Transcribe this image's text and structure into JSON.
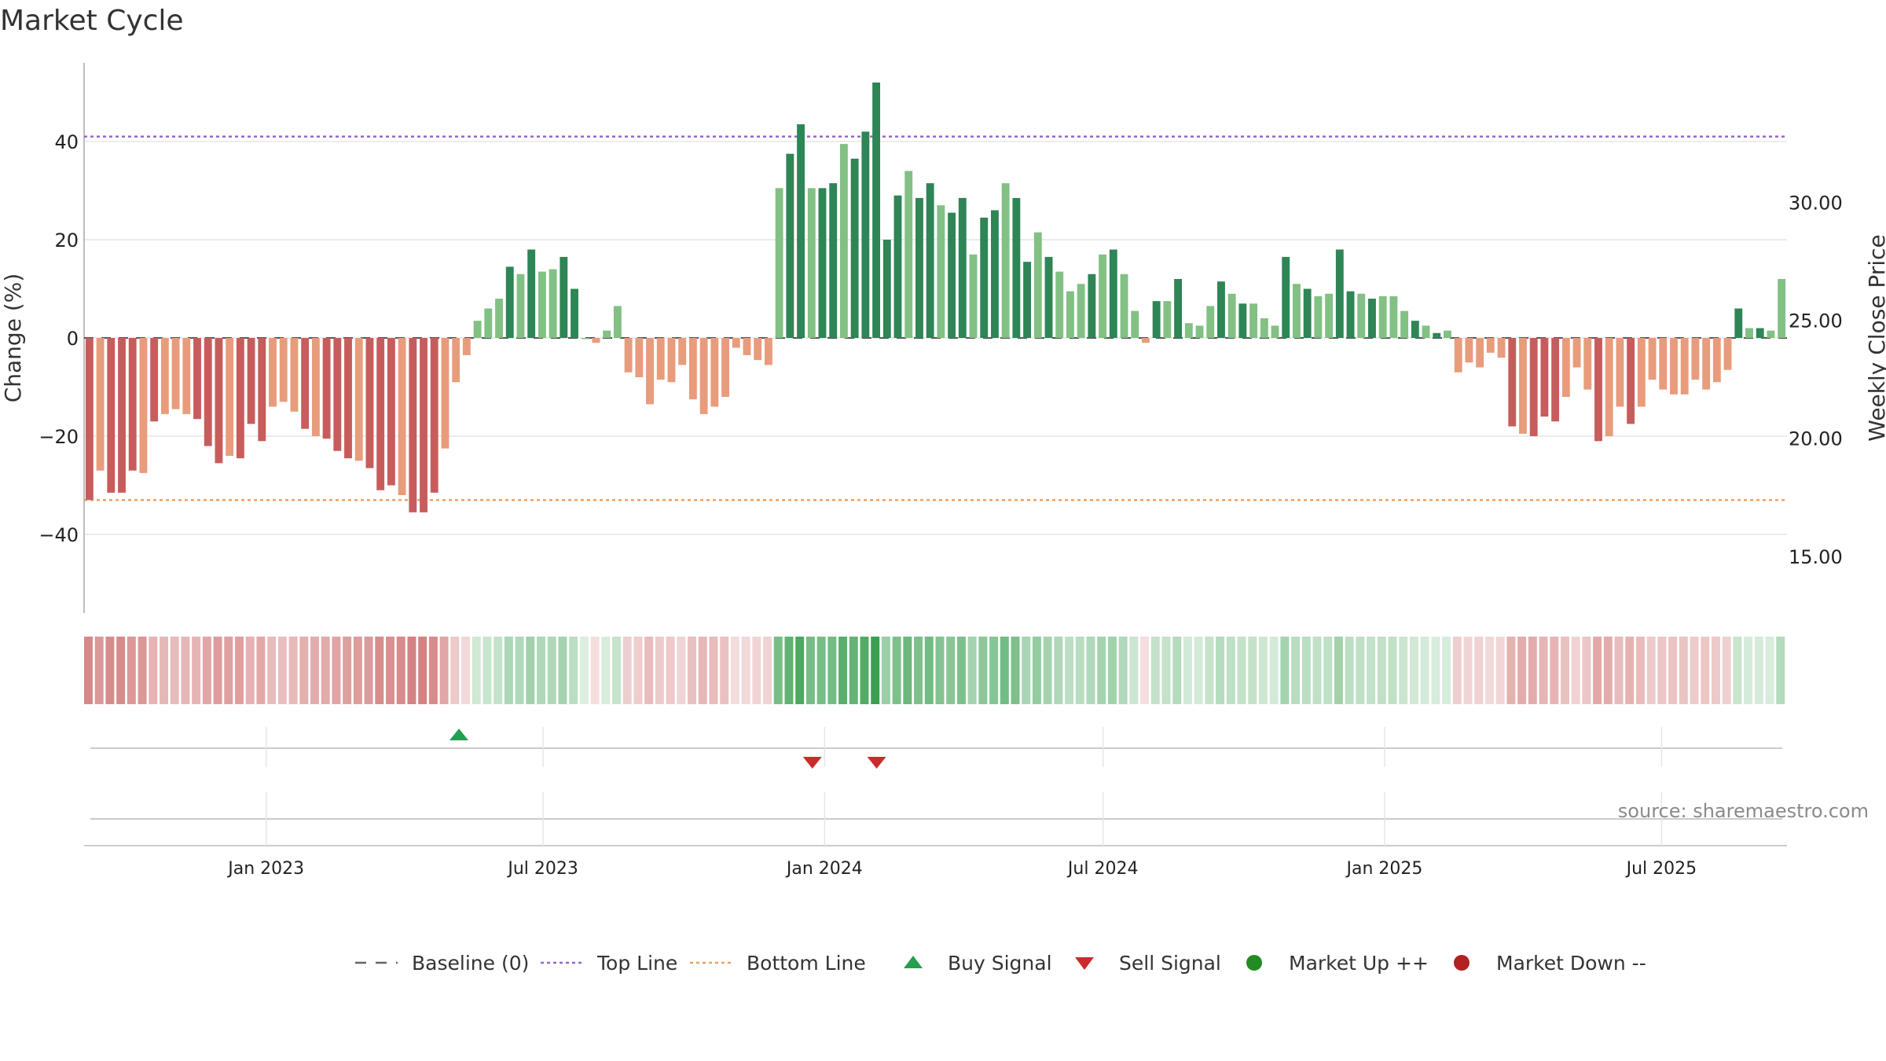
{
  "chart_data": {
    "type": "bar",
    "title": "Market Cycle",
    "ylabel": "Change (%)",
    "y2label": "Weekly Close Price",
    "ylim": [
      -56,
      56
    ],
    "yticks": [
      40,
      20,
      0,
      -20,
      -40
    ],
    "ytick_labels": [
      "40",
      "20",
      "0",
      "−20",
      "−40"
    ],
    "y2lim": [
      12.6,
      35.9
    ],
    "y2ticks": [
      30,
      25,
      20,
      15
    ],
    "y2tick_labels": [
      "30.00",
      "25.00",
      "20.00",
      "15.00"
    ],
    "top_line": 41,
    "bottom_line": -33,
    "x_start": "2022-09-04",
    "x_end": "2025-09-21",
    "xticks": [
      "2023-01-01",
      "2023-07-01",
      "2024-01-01",
      "2024-07-01",
      "2025-01-01",
      "2025-07-01"
    ],
    "xtick_labels": [
      "Jan 2023",
      "Jul 2023",
      "Jan 2024",
      "Jul 2024",
      "Jan 2025",
      "Jul 2025"
    ],
    "values": [
      -33,
      -27,
      -31.5,
      -31.5,
      -27,
      -27.5,
      -17,
      -15.5,
      -14.5,
      -15.5,
      -16.5,
      -22,
      -25.5,
      -24,
      -24.5,
      -17.5,
      -21,
      -14,
      -13,
      -15,
      -18.5,
      -20,
      -20.5,
      -23,
      -24.5,
      -25,
      -26.5,
      -31,
      -30,
      -32,
      -35.5,
      -35.5,
      -31.5,
      -22.5,
      -9,
      -3.5,
      3.5,
      6,
      8,
      14.5,
      13,
      18,
      13.5,
      14,
      16.5,
      10,
      0,
      -1,
      1.5,
      6.5,
      -7,
      -8,
      -13.5,
      -8.5,
      -9,
      -5.5,
      -12.5,
      -15.5,
      -14,
      -12,
      -2,
      -3.5,
      -4.5,
      -5.5,
      30.5,
      37.5,
      43.5,
      30.5,
      30.5,
      31.5,
      39.5,
      36.5,
      42,
      52,
      20,
      29,
      34,
      28.5,
      31.5,
      27,
      25.5,
      28.5,
      17,
      24.5,
      26,
      31.5,
      28.5,
      15.5,
      21.5,
      16.5,
      13.5,
      9.5,
      11,
      13,
      17,
      18,
      13,
      5.5,
      -1,
      7.5,
      7.5,
      12,
      3,
      2.5,
      6.5,
      11.5,
      9,
      7,
      7,
      4,
      2.5,
      16.5,
      11,
      10,
      8.5,
      9,
      18,
      9.5,
      9,
      8,
      8.5,
      8.5,
      5.5,
      3.5,
      2.5,
      1,
      1.5,
      -7,
      -5,
      -6,
      -3,
      -4,
      -18,
      -19.5,
      -20,
      -16,
      -17,
      -12,
      -6,
      -10.5,
      -21,
      -20,
      -14,
      -17.5,
      -14,
      -8.5,
      -10.5,
      -11.5,
      -11.5,
      -8.5,
      -10.5,
      -9,
      -6.5,
      6,
      2,
      2,
      1.5,
      12
    ],
    "bar_colors": {
      "strong_up": "#2e8555",
      "up": "#82c084",
      "strong_down": "#c85c5c",
      "down": "#e89c7c"
    },
    "signals": {
      "buy": [
        "2023-05-07"
      ],
      "sell": [
        "2023-12-24",
        "2024-02-04"
      ]
    },
    "heat_strip": {
      "pos_color": "#3aa050",
      "neg_color": "#c85c5c"
    },
    "legend": {
      "placement": "bottom",
      "items": [
        {
          "label": "Baseline (0)",
          "symbol": "dash-gray",
          "color": "#666666"
        },
        {
          "label": "Top Line",
          "symbol": "dot-line",
          "color": "#9966cc"
        },
        {
          "label": "Bottom Line",
          "symbol": "dot-line",
          "color": "#f0a060"
        },
        {
          "label": "Buy Signal",
          "symbol": "triangle-up",
          "color": "#22a050"
        },
        {
          "label": "Sell Signal",
          "symbol": "triangle-down",
          "color": "#cc2b2b"
        },
        {
          "label": "Market Up ++",
          "symbol": "circle",
          "color": "#228b22"
        },
        {
          "label": "Market Down --",
          "symbol": "circle",
          "color": "#b22222"
        }
      ]
    },
    "source": "source: sharemaestro.com",
    "grid": true
  }
}
